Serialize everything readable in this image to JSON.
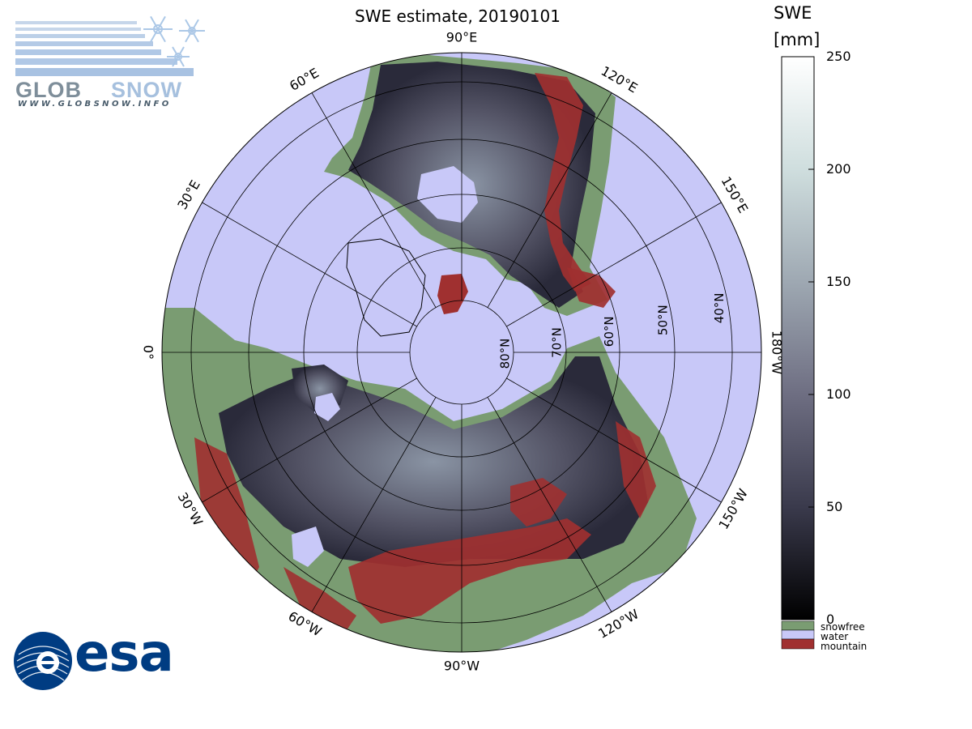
{
  "title": "SWE estimate, 20190101",
  "colorbar": {
    "title_line1": "SWE",
    "title_line2": "[mm]",
    "ticks": [
      "250",
      "200",
      "150",
      "100",
      "50",
      "0"
    ],
    "tick_values": [
      250,
      200,
      150,
      100,
      50,
      0
    ],
    "min": 0,
    "max": 250,
    "gradient": [
      "#000000",
      "#3a3a4c",
      "#6e6e82",
      "#9ea8b2",
      "#cfdede",
      "#ffffff"
    ]
  },
  "legend": [
    {
      "label": "snowfree",
      "color": "#7a9c72"
    },
    {
      "label": "water",
      "color": "#c8c8f8"
    },
    {
      "label": "mountain",
      "color": "#a03030"
    }
  ],
  "map": {
    "projection": "north-polar-stereographic",
    "ocean_color": "#c8c8f8",
    "longitude_labels": [
      {
        "text": "90°W",
        "lon": -90
      },
      {
        "text": "120°W",
        "lon": -120
      },
      {
        "text": "150°W",
        "lon": -150
      },
      {
        "text": "180°W",
        "lon": 180
      },
      {
        "text": "150°E",
        "lon": 150
      },
      {
        "text": "120°E",
        "lon": 120
      },
      {
        "text": "90°E",
        "lon": 90
      },
      {
        "text": "60°E",
        "lon": 60
      },
      {
        "text": "30°E",
        "lon": 30
      },
      {
        "text": "0°",
        "lon": 0
      },
      {
        "text": "30°W",
        "lon": -30
      },
      {
        "text": "60°W",
        "lon": -60
      }
    ],
    "latitude_labels": [
      {
        "text": "80°N",
        "lat": 80
      },
      {
        "text": "70°N",
        "lat": 70
      },
      {
        "text": "60°N",
        "lat": 60
      },
      {
        "text": "50°N",
        "lat": 50
      },
      {
        "text": "40°N",
        "lat": 40
      }
    ]
  },
  "logos": {
    "globsnow_url_text": "WWW.GLOBSNOW.INFO",
    "globsnow_wordmark": "GLOBSNOW",
    "esa_wordmark": "esa"
  }
}
